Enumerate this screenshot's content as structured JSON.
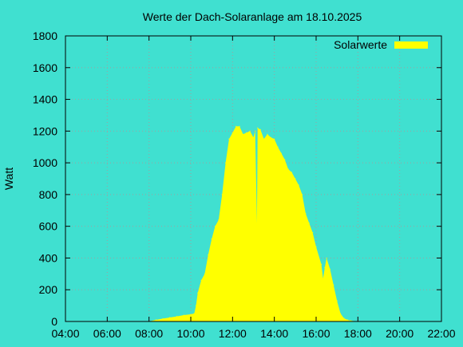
{
  "chart_data": {
    "type": "area",
    "title": "Werte der Dach-Solaranlage am 18.10.2025",
    "xlabel": "",
    "ylabel": "Watt",
    "x_ticks": [
      "04:00",
      "06:00",
      "08:00",
      "10:00",
      "12:00",
      "14:00",
      "16:00",
      "18:00",
      "20:00",
      "22:00"
    ],
    "y_ticks": [
      "0",
      "200",
      "400",
      "600",
      "800",
      "1000",
      "1200",
      "1400",
      "1600",
      "1800"
    ],
    "xlim": [
      "04:00",
      "22:00"
    ],
    "ylim": [
      0,
      1800
    ],
    "grid": true,
    "legend_position": "top-right",
    "colors": {
      "background": "#40e0d0",
      "series": "#ffff00",
      "grid": "#a0a0a0",
      "axis": "#000000"
    },
    "series": [
      {
        "name": "Solarwerte",
        "points": [
          [
            "08:00",
            0
          ],
          [
            "08:20",
            10
          ],
          [
            "08:40",
            18
          ],
          [
            "09:00",
            25
          ],
          [
            "09:20",
            32
          ],
          [
            "09:40",
            40
          ],
          [
            "10:00",
            45
          ],
          [
            "10:10",
            50
          ],
          [
            "10:15",
            100
          ],
          [
            "10:20",
            180
          ],
          [
            "10:30",
            260
          ],
          [
            "10:40",
            300
          ],
          [
            "10:50",
            420
          ],
          [
            "11:00",
            520
          ],
          [
            "11:10",
            600
          ],
          [
            "11:20",
            640
          ],
          [
            "11:30",
            800
          ],
          [
            "11:40",
            1000
          ],
          [
            "11:50",
            1150
          ],
          [
            "12:00",
            1190
          ],
          [
            "12:10",
            1230
          ],
          [
            "12:20",
            1230
          ],
          [
            "12:30",
            1180
          ],
          [
            "12:40",
            1190
          ],
          [
            "12:50",
            1200
          ],
          [
            "13:00",
            1160
          ],
          [
            "13:05",
            1200
          ],
          [
            "13:10",
            620
          ],
          [
            "13:12",
            1220
          ],
          [
            "13:20",
            1210
          ],
          [
            "13:30",
            1150
          ],
          [
            "13:40",
            1180
          ],
          [
            "13:50",
            1160
          ],
          [
            "14:00",
            1150
          ],
          [
            "14:10",
            1100
          ],
          [
            "14:20",
            1060
          ],
          [
            "14:30",
            1020
          ],
          [
            "14:40",
            960
          ],
          [
            "14:50",
            940
          ],
          [
            "15:00",
            900
          ],
          [
            "15:10",
            860
          ],
          [
            "15:20",
            800
          ],
          [
            "15:30",
            680
          ],
          [
            "15:40",
            620
          ],
          [
            "15:50",
            560
          ],
          [
            "16:00",
            470
          ],
          [
            "16:15",
            360
          ],
          [
            "16:20",
            270
          ],
          [
            "16:25",
            340
          ],
          [
            "16:30",
            400
          ],
          [
            "16:40",
            330
          ],
          [
            "16:50",
            230
          ],
          [
            "17:00",
            130
          ],
          [
            "17:10",
            50
          ],
          [
            "17:20",
            20
          ],
          [
            "17:30",
            10
          ],
          [
            "17:40",
            5
          ],
          [
            "18:00",
            0
          ]
        ]
      }
    ]
  }
}
